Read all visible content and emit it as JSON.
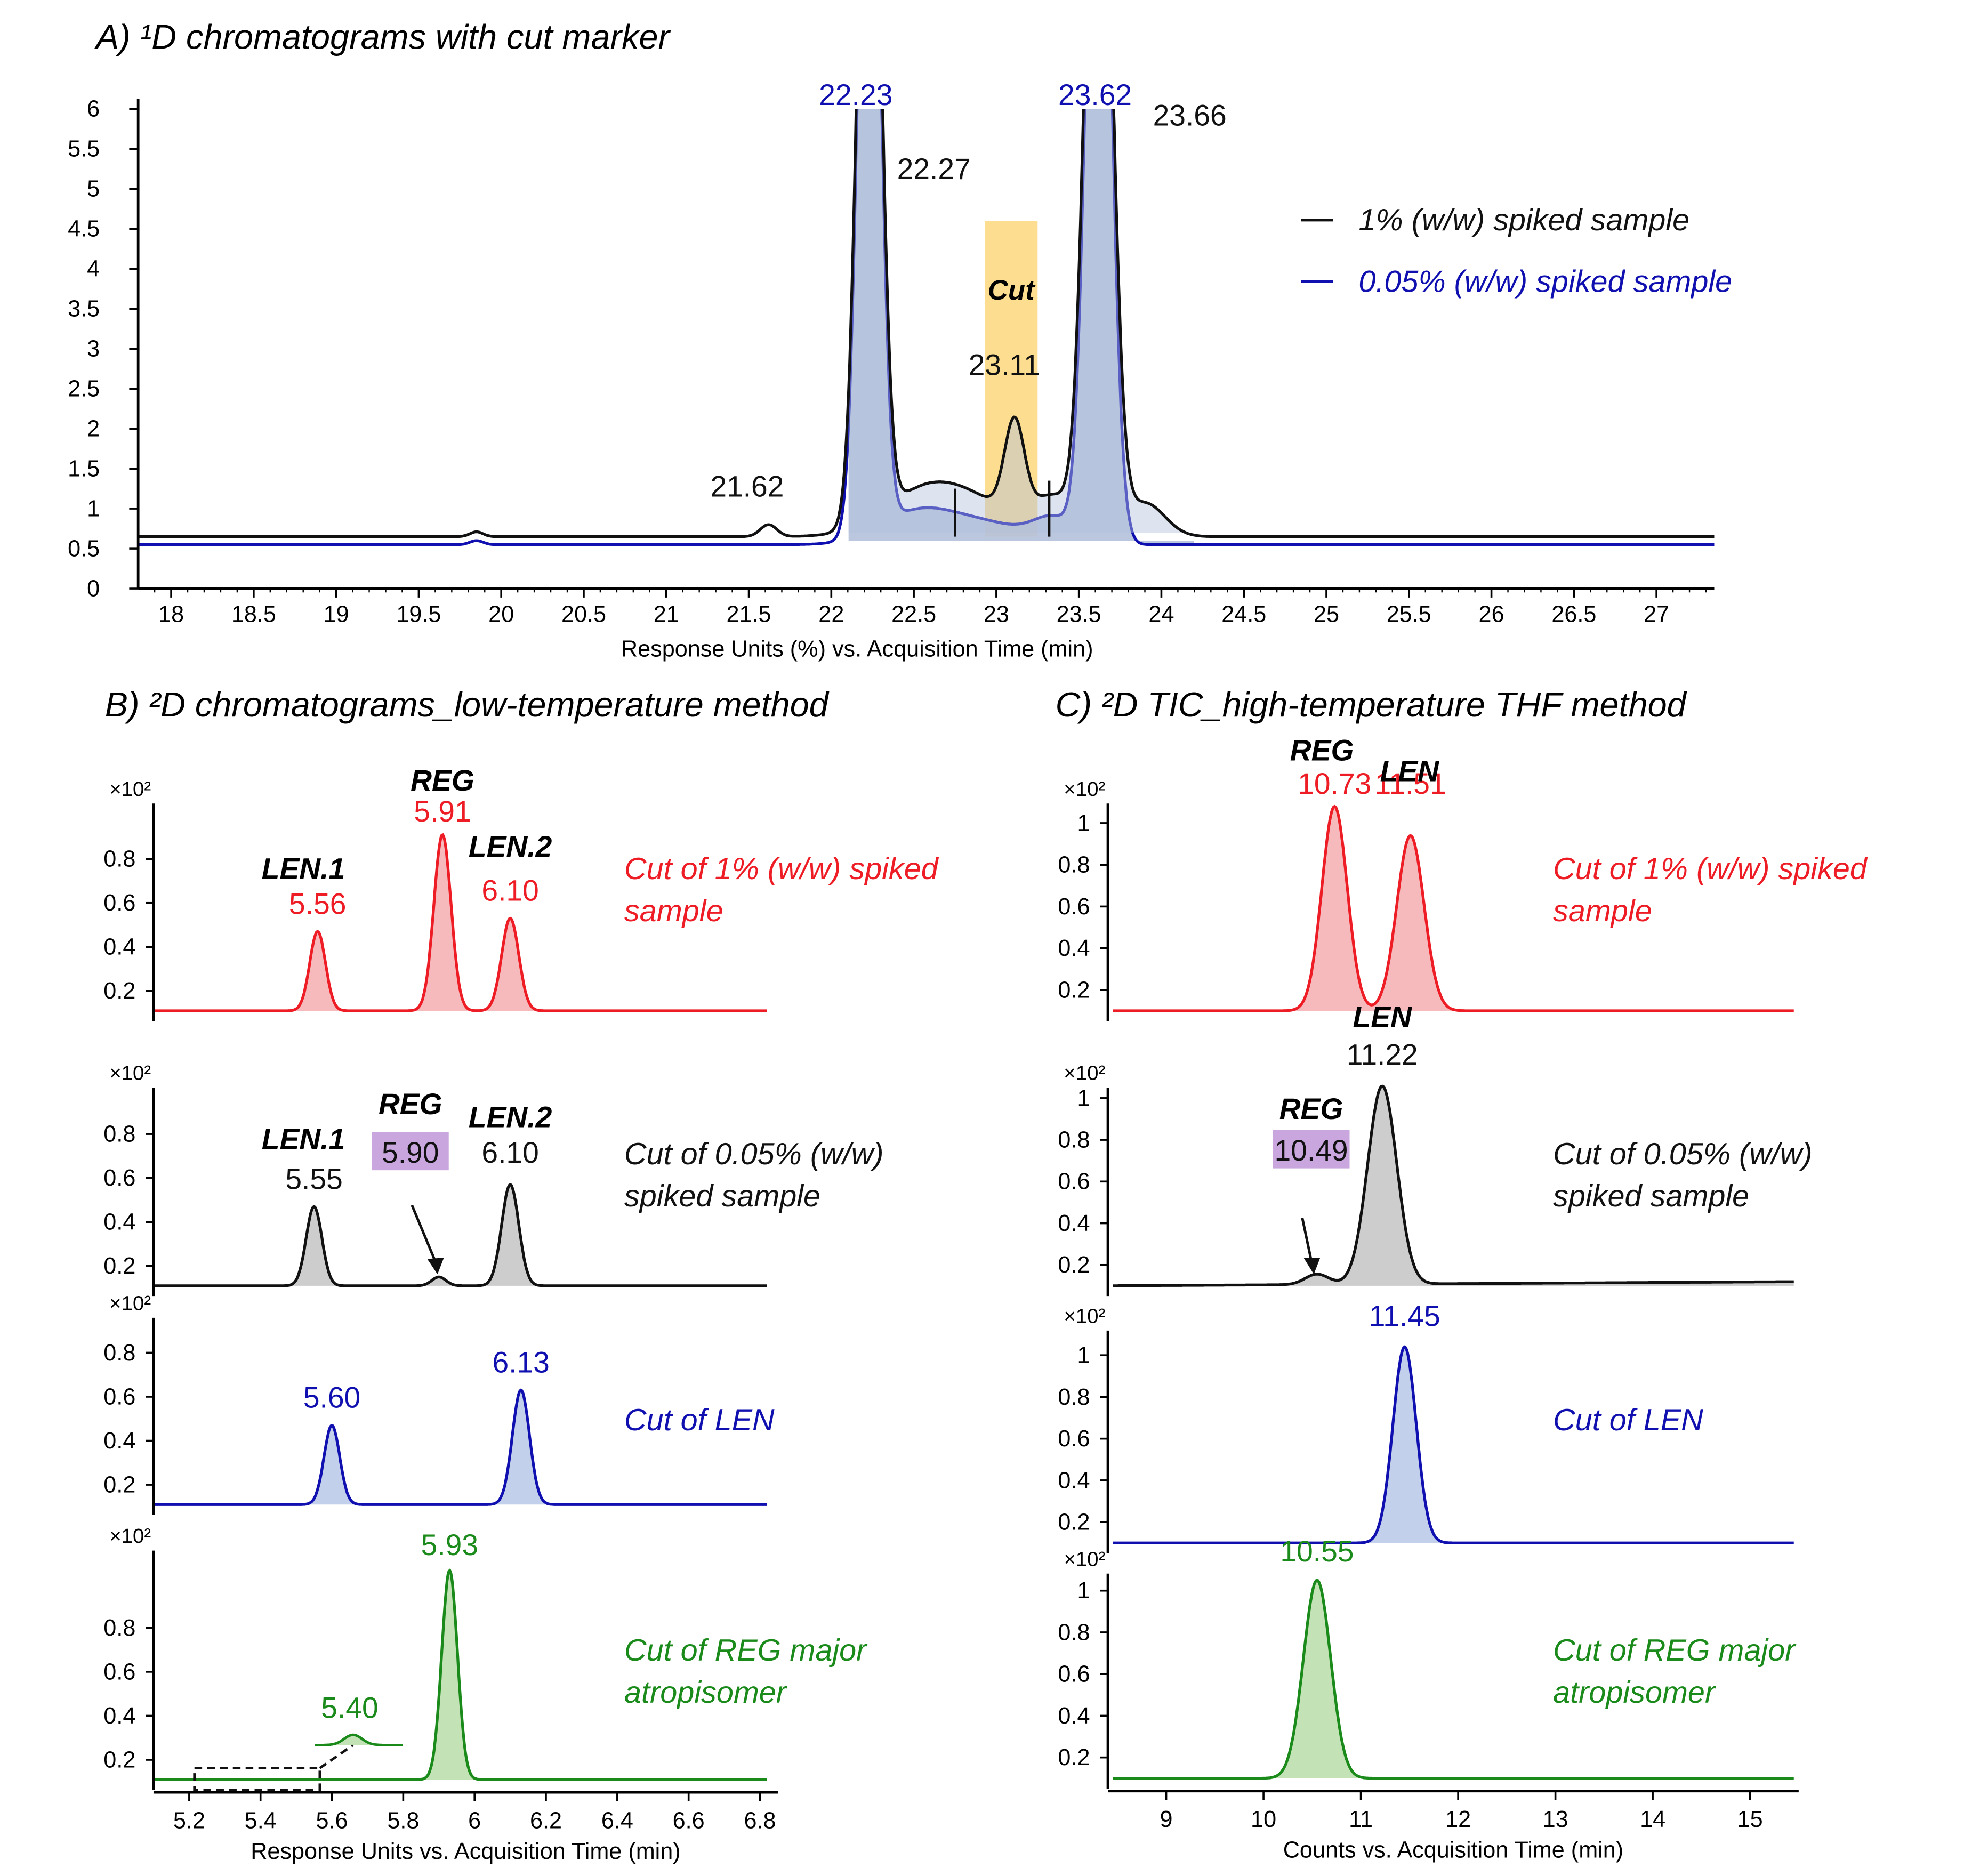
{
  "colors": {
    "black": "#111111",
    "blue": "#1010b0",
    "red": "#ee1c25",
    "green": "#1a8a1a",
    "cut": "#fdd77c",
    "highlight": "#c9a6dd",
    "fill_blue": "#b4c1dc",
    "fill_red": "#f6b3b5",
    "fill_grey": "#c8c8c8",
    "fill_blue2": "#bccbea",
    "fill_green": "#bcdfae"
  },
  "chart_data": [
    {
      "id": "A",
      "type": "line",
      "title": "A) ¹D chromatograms with cut marker",
      "xlabel": "Response Units (%) vs. Acquisition Time (min)",
      "xlim": [
        17.8,
        27.35
      ],
      "ylim": [
        0,
        6
      ],
      "xticks": [
        "18",
        "18.5",
        "19",
        "19.5",
        "20",
        "20.5",
        "21",
        "21.5",
        "22",
        "22.5",
        "23",
        "23.5",
        "24",
        "24.5",
        "25",
        "25.5",
        "26",
        "26.5",
        "27"
      ],
      "yticks": [
        "0",
        "0.5",
        "1",
        "1.5",
        "2",
        "2.5",
        "3",
        "3.5",
        "4",
        "4.5",
        "5",
        "5.5",
        "6"
      ],
      "cut_region": {
        "label": "Cut",
        "x": [
          22.93,
          23.25
        ],
        "y": [
          0.65,
          4.6
        ]
      },
      "legend": [
        {
          "label": "1% (w/w) spiked sample",
          "color": "black"
        },
        {
          "label": "0.05% (w/w) spiked sample",
          "color": "blue"
        }
      ],
      "series": [
        {
          "name": "1% (w/w) spiked sample",
          "color": "black",
          "baseline": 0.65,
          "peaks": [
            [
              19.85,
              0.06,
              0.04
            ],
            [
              21.62,
              0.15,
              0.05
            ],
            [
              22.23,
              11,
              0.065
            ],
            [
              23.11,
              1.15,
              0.06
            ],
            [
              23.62,
              11,
              0.075
            ]
          ],
          "shoulders": [
            [
              22.55,
              0.7,
              0.25
            ],
            [
              22.85,
              0.62,
              0.3
            ],
            [
              23.35,
              0.7,
              0.12
            ],
            [
              23.9,
              0.7,
              0.12
            ]
          ]
        },
        {
          "name": "0.05% (w/w) spiked sample",
          "color": "blue",
          "baseline": 0.55,
          "peaks": [
            [
              19.85,
              0.05,
              0.04
            ],
            [
              22.23,
              11,
              0.062
            ],
            [
              23.62,
              11,
              0.07
            ]
          ],
          "shoulders": [
            [
              22.5,
              0.55,
              0.22
            ],
            [
              22.9,
              0.45,
              0.3
            ],
            [
              23.35,
              0.45,
              0.12
            ]
          ]
        }
      ],
      "peak_labels": [
        {
          "text": "22.23",
          "x": 22.23,
          "color": "blue"
        },
        {
          "text": "22.27",
          "x": 22.55,
          "color": "black"
        },
        {
          "text": "23.62",
          "x": 23.62,
          "color": "blue"
        },
        {
          "text": "23.66",
          "x": 24.1,
          "color": "black"
        },
        {
          "text": "23.11",
          "x": 23.11,
          "color": "black"
        },
        {
          "text": "21.62",
          "x": 21.5,
          "color": "black"
        }
      ]
    },
    {
      "id": "B",
      "type": "line",
      "title": "B) ²D chromatograms_low-temperature method",
      "xlabel": "Response Units vs. Acquisition Time (min)",
      "xlim": [
        5.1,
        6.85
      ],
      "xticks": [
        "5.2",
        "5.4",
        "5.6",
        "5.8",
        "6",
        "6.2",
        "6.4",
        "6.6",
        "6.8"
      ],
      "multiplier": "×10²",
      "yticks": [
        "0.2",
        "0.4",
        "0.6",
        "0.8"
      ],
      "panels": [
        {
          "color": "red",
          "note": [
            "Cut of 1% (w/w) spiked",
            "sample"
          ],
          "peaks": [
            [
              5.56,
              0.36,
              0.022
            ],
            [
              5.91,
              0.8,
              0.024
            ],
            [
              6.1,
              0.42,
              0.024
            ]
          ],
          "labels": [
            {
              "text": "5.56",
              "x": 5.56,
              "y": 0.44
            },
            {
              "text": "5.91",
              "x": 5.91,
              "y": 0.86
            },
            {
              "text": "6.10",
              "x": 6.1,
              "y": 0.5
            }
          ],
          "names": [
            {
              "text": "LEN.1",
              "x": 5.52,
              "y": 0.6
            },
            {
              "text": "REG",
              "x": 5.91,
              "y": 1.0
            },
            {
              "text": "LEN.2",
              "x": 6.1,
              "y": 0.7
            }
          ]
        },
        {
          "color": "black",
          "note": [
            "Cut of 0.05% (w/w)",
            "spiked sample"
          ],
          "peaks": [
            [
              5.55,
              0.36,
              0.022
            ],
            [
              5.9,
              0.04,
              0.02
            ],
            [
              6.1,
              0.46,
              0.024
            ]
          ],
          "labels": [
            {
              "text": "5.55",
              "x": 5.55,
              "y": 0.44
            },
            {
              "text": "5.90",
              "x": 5.82,
              "y": 0.56,
              "highlight": true
            },
            {
              "text": "6.10",
              "x": 6.1,
              "y": 0.56
            }
          ],
          "names": [
            {
              "text": "LEN.1",
              "x": 5.52,
              "y": 0.62
            },
            {
              "text": "REG",
              "x": 5.82,
              "y": 0.78
            },
            {
              "text": "LEN.2",
              "x": 6.1,
              "y": 0.72
            }
          ]
        },
        {
          "color": "blue",
          "note": [
            "Cut of LEN"
          ],
          "peaks": [
            [
              5.6,
              0.36,
              0.022
            ],
            [
              6.13,
              0.52,
              0.024
            ]
          ],
          "labels": [
            {
              "text": "5.60",
              "x": 5.6,
              "y": 0.44
            },
            {
              "text": "6.13",
              "x": 6.13,
              "y": 0.6
            }
          ],
          "names": []
        },
        {
          "color": "green",
          "note": [
            "Cut of REG major",
            "atropisomer"
          ],
          "peaks": [
            [
              5.93,
              0.95,
              0.022
            ]
          ],
          "labels": [
            {
              "text": "5.93",
              "x": 5.93,
              "y": 1.02
            },
            {
              "text": "5.40",
              "x": 5.65,
              "y": 0.28
            }
          ],
          "names": []
        }
      ]
    },
    {
      "id": "C",
      "type": "line",
      "title": "C) ²D TIC_high-temperature THF method",
      "xlabel": "Counts vs. Acquisition Time (min)",
      "xlim": [
        8.4,
        15.5
      ],
      "xticks": [
        "9",
        "10",
        "11",
        "12",
        "13",
        "14",
        "15"
      ],
      "multiplier": "×10²",
      "yticks": [
        "0.2",
        "0.4",
        "0.6",
        "0.8",
        "1"
      ],
      "panels": [
        {
          "color": "red",
          "note": [
            "Cut of 1% (w/w) spiked",
            "sample"
          ],
          "peaks": [
            [
              10.73,
              0.98,
              0.13
            ],
            [
              11.51,
              0.84,
              0.14
            ]
          ],
          "labels": [
            {
              "text": "10.73",
              "x": 10.73,
              "y": 1.04
            },
            {
              "text": "11.51",
              "x": 11.51,
              "y": 1.04
            }
          ],
          "names": [
            {
              "text": "REG",
              "x": 10.6,
              "y": 1.2
            },
            {
              "text": "LEN",
              "x": 11.5,
              "y": 1.1
            }
          ]
        },
        {
          "color": "black",
          "note": [
            "Cut of 0.05% (w/w)",
            "spiked sample"
          ],
          "peaks": [
            [
              10.55,
              0.05,
              0.12
            ],
            [
              11.22,
              0.95,
              0.15
            ]
          ],
          "labels": [
            {
              "text": "11.22",
              "x": 11.22,
              "y": 1.06
            },
            {
              "text": "10.49",
              "x": 10.49,
              "y": 0.6,
              "highlight": true
            }
          ],
          "names": [
            {
              "text": "LEN",
              "x": 11.22,
              "y": 1.24
            },
            {
              "text": "REG",
              "x": 10.49,
              "y": 0.8
            }
          ]
        },
        {
          "color": "blue",
          "note": [
            "Cut of LEN"
          ],
          "peaks": [
            [
              11.45,
              0.94,
              0.12
            ]
          ],
          "labels": [
            {
              "text": "11.45",
              "x": 11.45,
              "y": 1.04
            }
          ],
          "names": []
        },
        {
          "color": "green",
          "note": [
            "Cut of REG major",
            "atropisomer"
          ],
          "peaks": [
            [
              10.55,
              0.95,
              0.14
            ]
          ],
          "labels": [
            {
              "text": "10.55",
              "x": 10.55,
              "y": 1.04
            }
          ],
          "names": []
        }
      ]
    }
  ]
}
